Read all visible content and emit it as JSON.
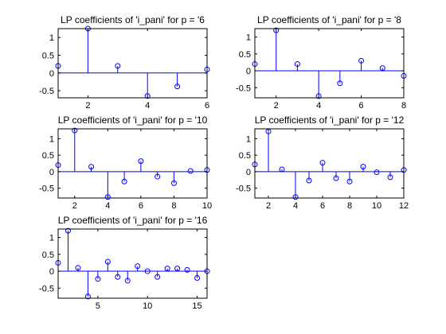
{
  "figure": {
    "background": "#ffffff",
    "stem_color": "#0000ff",
    "axes_color": "#000000"
  },
  "chart_data": [
    {
      "type": "stem",
      "title": "LP coefficients of 'i_pani' for p = '6",
      "x": [
        1,
        2,
        3,
        4,
        5,
        6
      ],
      "values": [
        0.2,
        1.25,
        0.2,
        -0.65,
        -0.38,
        0.1
      ],
      "xlim": [
        1,
        6
      ],
      "ylim": [
        -0.7,
        1.25
      ],
      "xticks": [
        2,
        4,
        6
      ],
      "yticks": [
        -0.5,
        0,
        0.5,
        1
      ],
      "ytick_labels": [
        "-0.5",
        "0",
        "0.5",
        "1"
      ],
      "grid": false
    },
    {
      "type": "stem",
      "title": "LP coefficients of 'i_pani' for p = '8",
      "x": [
        1,
        2,
        3,
        4,
        5,
        6,
        7,
        8
      ],
      "values": [
        0.2,
        1.2,
        0.2,
        -0.75,
        -0.37,
        0.3,
        0.08,
        -0.15
      ],
      "xlim": [
        1,
        8
      ],
      "ylim": [
        -0.8,
        1.25
      ],
      "xticks": [
        2,
        4,
        6,
        8
      ],
      "yticks": [
        -0.5,
        0,
        0.5,
        1
      ],
      "ytick_labels": [
        "-0.5",
        "0",
        "0.5",
        "1"
      ],
      "grid": false
    },
    {
      "type": "stem",
      "title": "LP coefficients of 'i_pani' for p = '10",
      "x": [
        1,
        2,
        3,
        4,
        5,
        6,
        7,
        8,
        9,
        10
      ],
      "values": [
        0.2,
        1.25,
        0.15,
        -0.77,
        -0.3,
        0.32,
        -0.15,
        -0.35,
        0.02,
        0.05
      ],
      "xlim": [
        1,
        10
      ],
      "ylim": [
        -0.8,
        1.3
      ],
      "xticks": [
        2,
        4,
        6,
        8,
        10
      ],
      "yticks": [
        -0.5,
        0,
        0.5,
        1
      ],
      "ytick_labels": [
        "-0.5",
        "0",
        "0.5",
        "1"
      ],
      "grid": false
    },
    {
      "type": "stem",
      "title": "LP coefficients of 'i_pani' for p = '12",
      "x": [
        1,
        2,
        3,
        4,
        5,
        6,
        7,
        8,
        9,
        10,
        11,
        12
      ],
      "values": [
        0.22,
        1.22,
        0.07,
        -0.77,
        -0.27,
        0.27,
        -0.2,
        -0.3,
        0.15,
        -0.02,
        -0.17,
        0.05
      ],
      "xlim": [
        1,
        12
      ],
      "ylim": [
        -0.8,
        1.3
      ],
      "xticks": [
        2,
        4,
        6,
        8,
        10,
        12
      ],
      "yticks": [
        -0.5,
        0,
        0.5,
        1
      ],
      "ytick_labels": [
        "-0.5",
        "0",
        "0.5",
        "1"
      ],
      "grid": false
    },
    {
      "type": "stem",
      "title": "LP coefficients of 'i_pani' for p = '16",
      "x": [
        1,
        2,
        3,
        4,
        5,
        6,
        7,
        8,
        9,
        10,
        11,
        12,
        13,
        14,
        15,
        16
      ],
      "values": [
        0.25,
        1.2,
        0.1,
        -0.75,
        -0.23,
        0.28,
        -0.17,
        -0.28,
        0.15,
        0.0,
        -0.17,
        0.08,
        0.08,
        0.04,
        -0.2,
        0.0
      ],
      "xlim": [
        1,
        16
      ],
      "ylim": [
        -0.8,
        1.25
      ],
      "xticks": [
        5,
        10,
        15
      ],
      "yticks": [
        -0.5,
        0,
        0.5,
        1
      ],
      "ytick_labels": [
        "-0.5",
        "0",
        "0.5",
        "1"
      ],
      "grid": false
    }
  ]
}
